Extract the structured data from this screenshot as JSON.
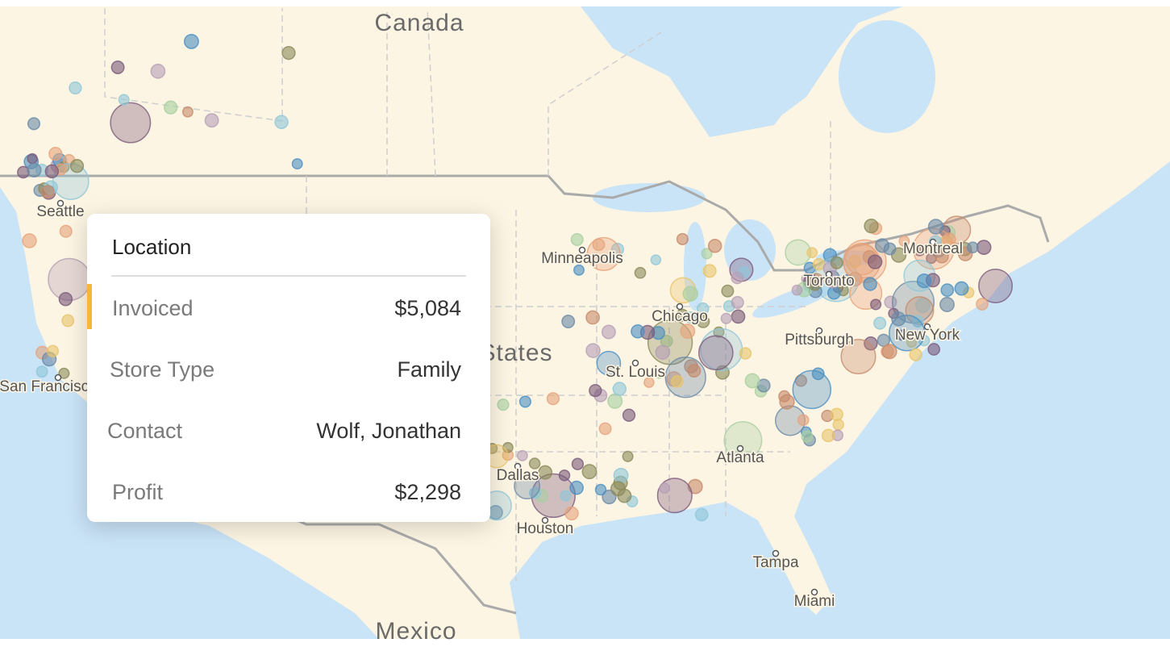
{
  "map": {
    "region_labels": [
      "Canada",
      "States",
      "Mexico"
    ],
    "cities": [
      "Seattle",
      "San Francisco",
      "Minneapolis",
      "Chicago",
      "St. Louis",
      "Pittsburgh",
      "Toronto",
      "Montreal",
      "New York",
      "Dallas",
      "Houston",
      "Atlanta",
      "Tampa",
      "Miami"
    ]
  },
  "tooltip": {
    "title": "Location",
    "rows": [
      [
        "Invoiced",
        "$5,084"
      ],
      [
        "Store Type",
        "Family"
      ],
      [
        "Contact",
        "Wolf, Jonathan"
      ],
      [
        "Profit",
        "$2,298"
      ]
    ]
  }
}
